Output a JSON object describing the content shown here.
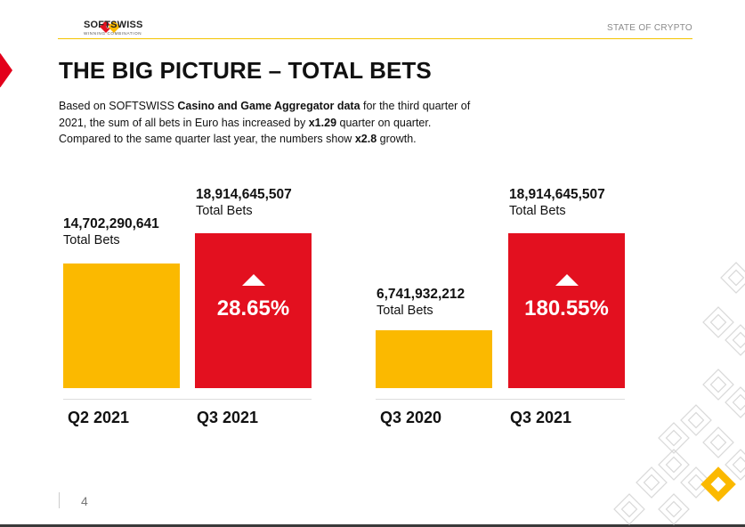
{
  "header": {
    "brand": "SOFTSWISS",
    "tagline": "WINNING COMBINATION",
    "section": "STATE OF CRYPTO"
  },
  "page": {
    "title": "THE BIG PICTURE – TOTAL BETS",
    "intro_parts": {
      "p1": "Based on SOFTSWISS ",
      "b1": "Casino and Game Aggregator data",
      "p2": " for the third quarter of 2021, the sum of all bets in Euro has increased by ",
      "b2": "x1.29",
      "p3": " quarter on quarter. Compared to the same quarter last year, the numbers show ",
      "b3": "x2.8",
      "p4": " growth."
    },
    "page_number": "4"
  },
  "comparisons": [
    {
      "before": {
        "value": "14,702,290,641",
        "label": "Total Bets",
        "quarter": "Q2 2021"
      },
      "after": {
        "value": "18,914,645,507",
        "label": "Total Bets",
        "quarter": "Q3 2021",
        "change": "28.65%"
      }
    },
    {
      "before": {
        "value": "6,741,932,212",
        "label": "Total Bets",
        "quarter": "Q3 2020"
      },
      "after": {
        "value": "18,914,645,507",
        "label": "Total Bets",
        "quarter": "Q3 2021",
        "change": "180.55%"
      }
    }
  ],
  "colors": {
    "accent_yellow": "#fbb900",
    "accent_red": "#e3101f",
    "rule": "#f4c400"
  }
}
